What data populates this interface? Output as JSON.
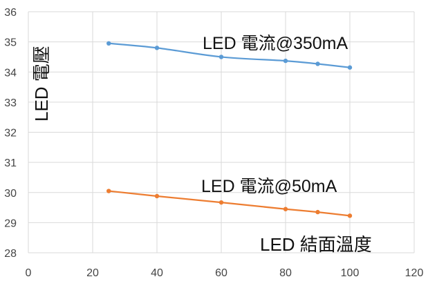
{
  "chart_data": {
    "type": "line",
    "title": "",
    "xlabel": "LED 結面溫度",
    "ylabel": "LED 電壓",
    "xlim": [
      0,
      120
    ],
    "ylim": [
      28,
      36
    ],
    "x_ticks": [
      "0",
      "20",
      "40",
      "60",
      "80",
      "100",
      "120"
    ],
    "y_ticks": [
      "28",
      "29",
      "30",
      "31",
      "32",
      "33",
      "34",
      "35",
      "36"
    ],
    "grid": "both",
    "legend": "none",
    "series": [
      {
        "name": "LED 電流@350mA",
        "color": "#5B9BD5",
        "x": [
          25,
          40,
          60,
          80,
          90,
          100
        ],
        "y": [
          34.95,
          34.8,
          34.5,
          34.37,
          34.27,
          34.15
        ]
      },
      {
        "name": "LED 電流@50mA",
        "color": "#ED7D31",
        "x": [
          25,
          40,
          60,
          80,
          90,
          100
        ],
        "y": [
          30.05,
          29.88,
          29.67,
          29.45,
          29.35,
          29.23
        ]
      }
    ]
  }
}
